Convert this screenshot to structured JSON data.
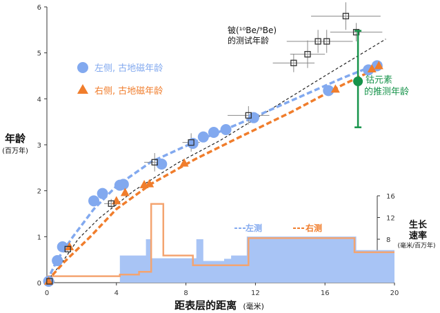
{
  "chart_data": {
    "type": "scatter",
    "xlabel": "距表层的距离",
    "xlabel_unit": "(毫米)",
    "ylabel": "年龄",
    "ylabel_unit": "(百万年)",
    "y2label": "生长速率",
    "y2label_unit": "(毫米/百万年)",
    "xlim": [
      0,
      20
    ],
    "ylim": [
      0,
      6
    ],
    "y2lim": [
      0,
      16
    ],
    "x_ticks": [
      "0",
      "4",
      "8",
      "12",
      "16",
      "20"
    ],
    "y_ticks": [
      "0",
      "1",
      "2",
      "3",
      "4",
      "5",
      "6"
    ],
    "y2_ticks": [
      "4",
      "8",
      "12",
      "16"
    ],
    "legend": {
      "left_label": "左侧, 古地磁年龄",
      "right_label": "右侧, 古地磁年龄",
      "be_label_line1": "铍(¹⁰Be/⁹Be)",
      "be_label_line2": "的测试年龄",
      "co_label_line1": "钴元素",
      "co_label_line2": "的推测年龄",
      "rate_left": "左测",
      "rate_right": "右测"
    },
    "colors": {
      "left": "#82a9ef",
      "right": "#f07d2c",
      "be": "#333333",
      "co": "#16934a",
      "rate_left_fill": "#a8c4f5",
      "rate_right_line": "#f4a470"
    },
    "series": [
      {
        "name": "左侧, 古地磁年龄",
        "points": [
          [
            0.1,
            0.03
          ],
          [
            0.6,
            0.48
          ],
          [
            0.9,
            0.78
          ],
          [
            2.7,
            1.78
          ],
          [
            3.2,
            1.94
          ],
          [
            4.2,
            2.12
          ],
          [
            4.4,
            2.14
          ],
          [
            6.6,
            2.58
          ],
          [
            8.4,
            3.03
          ],
          [
            9.0,
            3.17
          ],
          [
            9.6,
            3.27
          ],
          [
            10.3,
            3.33
          ],
          [
            11.9,
            3.59
          ],
          [
            16.2,
            4.18
          ],
          [
            18.5,
            4.63
          ],
          [
            19.0,
            4.72
          ]
        ]
      },
      {
        "name": "右侧, 古地磁年龄",
        "points": [
          [
            0.1,
            0.03
          ],
          [
            1.3,
            0.78
          ],
          [
            4.0,
            1.78
          ],
          [
            4.5,
            1.96
          ],
          [
            5.6,
            2.13
          ],
          [
            5.9,
            2.15
          ],
          [
            7.9,
            2.6
          ],
          [
            16.6,
            4.21
          ],
          [
            18.7,
            4.65
          ],
          [
            19.1,
            4.72
          ]
        ]
      },
      {
        "name": "铍(¹⁰Be/⁹Be)的测试年龄",
        "points": [
          [
            0.15,
            0.03,
            0.3,
            0.05
          ],
          [
            1.2,
            0.73,
            0.3,
            0.05
          ],
          [
            3.7,
            1.72,
            0.4,
            0.1
          ],
          [
            6.2,
            2.62,
            0.6,
            0.2
          ],
          [
            8.3,
            3.05,
            0.5,
            0.2
          ],
          [
            11.6,
            3.64,
            1.2,
            0.2
          ],
          [
            14.2,
            4.78,
            1.2,
            0.2
          ],
          [
            15.0,
            4.97,
            1.0,
            0.3
          ],
          [
            15.6,
            5.25,
            1.8,
            0.25
          ],
          [
            16.1,
            5.25,
            1.5,
            0.25
          ],
          [
            17.2,
            5.8,
            2.0,
            0.3
          ],
          [
            17.8,
            5.45,
            1.5,
            0.2
          ]
        ]
      },
      {
        "name": "钴元素的推测年龄",
        "point": [
          17.9,
          4.38
        ],
        "range": [
          3.38,
          5.48
        ]
      }
    ],
    "fit_curves": {
      "left": [
        [
          0,
          0.03
        ],
        [
          0.6,
          0.5
        ],
        [
          1.5,
          1.0
        ],
        [
          2.7,
          1.6
        ],
        [
          4.0,
          2.1
        ],
        [
          6.0,
          2.63
        ],
        [
          8.5,
          3.06
        ],
        [
          11.0,
          3.45
        ],
        [
          14.0,
          3.95
        ],
        [
          17.0,
          4.45
        ],
        [
          19.2,
          4.78
        ]
      ],
      "right": [
        [
          0,
          0.03
        ],
        [
          1.0,
          0.45
        ],
        [
          2.5,
          1.0
        ],
        [
          4.0,
          1.6
        ],
        [
          6.0,
          2.15
        ],
        [
          8.5,
          2.68
        ],
        [
          11.0,
          3.15
        ],
        [
          14.0,
          3.7
        ],
        [
          17.0,
          4.3
        ],
        [
          19.3,
          4.72
        ]
      ],
      "be": [
        [
          0,
          0.03
        ],
        [
          0.8,
          0.4
        ],
        [
          1.8,
          0.95
        ],
        [
          3.0,
          1.4
        ],
        [
          5.0,
          2.0
        ],
        [
          7.5,
          2.6
        ],
        [
          10.0,
          3.1
        ],
        [
          13.0,
          3.8
        ],
        [
          16.0,
          4.5
        ],
        [
          19.5,
          5.3
        ]
      ]
    },
    "rate_left_steps": [
      [
        0,
        0
      ],
      [
        4.2,
        0
      ],
      [
        4.2,
        5
      ],
      [
        5.7,
        5
      ],
      [
        5.7,
        8
      ],
      [
        6.0,
        8
      ],
      [
        6.0,
        4.5
      ],
      [
        8.6,
        4.5
      ],
      [
        8.6,
        8
      ],
      [
        9.0,
        8
      ],
      [
        9.0,
        4
      ],
      [
        10.2,
        4
      ],
      [
        10.2,
        4.4
      ],
      [
        10.6,
        4.4
      ],
      [
        10.6,
        5
      ],
      [
        11.5,
        5
      ],
      [
        11.5,
        8.5
      ],
      [
        17.8,
        8.5
      ],
      [
        17.8,
        6
      ],
      [
        20.0,
        6
      ],
      [
        20.0,
        0
      ]
    ],
    "rate_right_steps": [
      [
        0,
        1.2
      ],
      [
        4.2,
        1.2
      ],
      [
        4.2,
        1.5
      ],
      [
        5.3,
        1.5
      ],
      [
        5.3,
        2.0
      ],
      [
        6.0,
        2.0
      ],
      [
        6.0,
        14.5
      ],
      [
        6.7,
        14.5
      ],
      [
        6.7,
        5.0
      ],
      [
        8.4,
        5.0
      ],
      [
        8.4,
        3.2
      ],
      [
        11.6,
        3.2
      ],
      [
        11.6,
        8.2
      ],
      [
        17.7,
        8.2
      ],
      [
        17.7,
        5.6
      ],
      [
        20.0,
        5.6
      ]
    ]
  }
}
